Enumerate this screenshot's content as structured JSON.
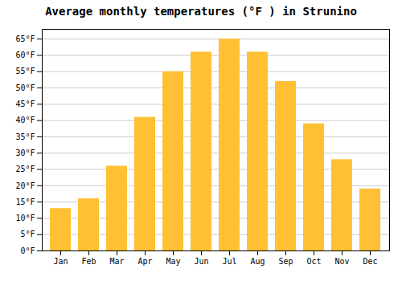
{
  "chart_data": {
    "type": "bar",
    "title": "Average monthly temperatures (°F ) in Strunino",
    "categories": [
      "Jan",
      "Feb",
      "Mar",
      "Apr",
      "May",
      "Jun",
      "Jul",
      "Aug",
      "Sep",
      "Oct",
      "Nov",
      "Dec"
    ],
    "values": [
      13,
      16,
      26,
      41,
      55,
      61,
      65,
      61,
      52,
      39,
      28,
      19
    ],
    "color": "#FFC133",
    "ylim": [
      0,
      68
    ],
    "yticks": [
      {
        "value": 0,
        "label": "0°F"
      },
      {
        "value": 5,
        "label": "5°F"
      },
      {
        "value": 10,
        "label": "10°F"
      },
      {
        "value": 15,
        "label": "15°F"
      },
      {
        "value": 20,
        "label": "20°F"
      },
      {
        "value": 25,
        "label": "25°F"
      },
      {
        "value": 30,
        "label": "30°F"
      },
      {
        "value": 35,
        "label": "35°F"
      },
      {
        "value": 40,
        "label": "40°F"
      },
      {
        "value": 45,
        "label": "45°F"
      },
      {
        "value": 50,
        "label": "50°F"
      },
      {
        "value": 55,
        "label": "55°F"
      },
      {
        "value": 60,
        "label": "60°F"
      },
      {
        "value": 65,
        "label": "65°F"
      }
    ],
    "grid": true
  }
}
